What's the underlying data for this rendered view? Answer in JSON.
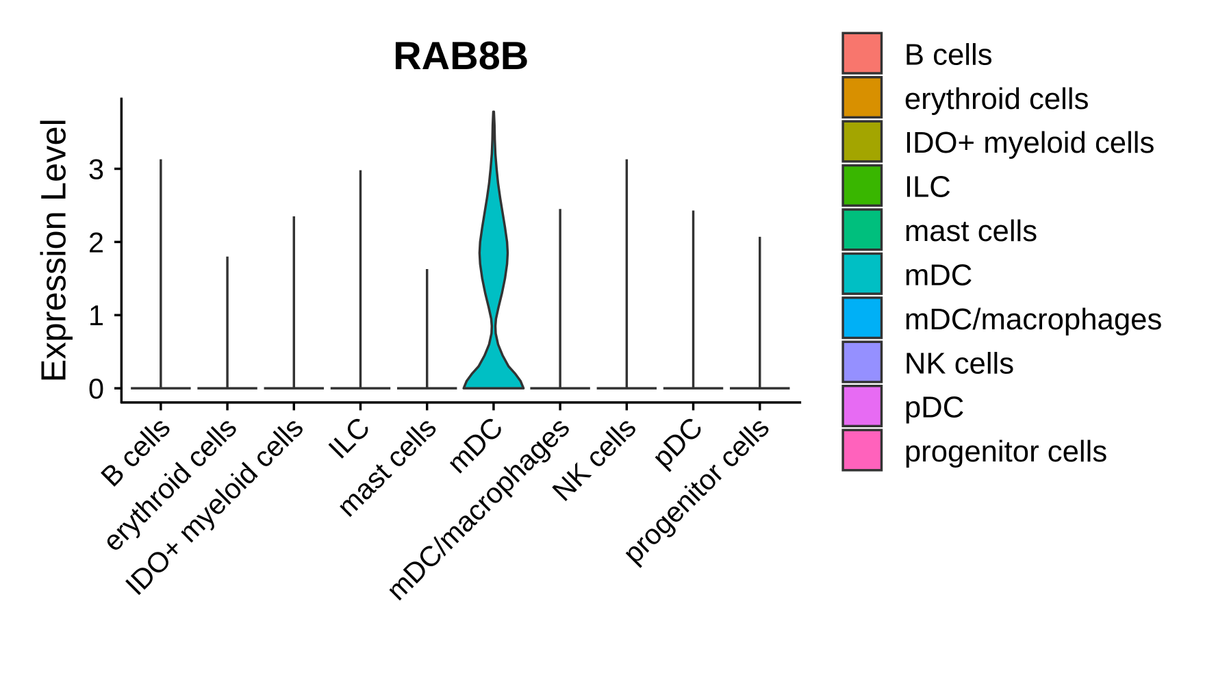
{
  "chart_data": {
    "type": "violin",
    "title": "RAB8B",
    "xlabel": "",
    "ylabel": "Expression Level",
    "ylim": [
      -0.2,
      4.0
    ],
    "yticks": [
      0,
      1,
      2,
      3
    ],
    "ytick_labels": [
      "0",
      "1",
      "2",
      "3"
    ],
    "grid": false,
    "legend_position": "right",
    "categories": [
      "B cells",
      "erythroid cells",
      "IDO+ myeloid cells",
      "ILC",
      "mast cells",
      "mDC",
      "mDC/macrophages",
      "NK cells",
      "pDC",
      "progenitor cells"
    ],
    "colors": [
      "#F8766D",
      "#D89000",
      "#A3A500",
      "#39B600",
      "#00BF7D",
      "#00BFC4",
      "#00B0F6",
      "#9590FF",
      "#E76BF3",
      "#FF62BC"
    ],
    "max_values": [
      3.13,
      1.8,
      2.35,
      2.98,
      1.63,
      3.78,
      2.45,
      3.13,
      2.43,
      2.07
    ],
    "mDC_density_profile": {
      "y": [
        0,
        0.1,
        0.2,
        0.3,
        0.45,
        0.6,
        0.75,
        0.85,
        0.95,
        1.1,
        1.3,
        1.5,
        1.7,
        1.85,
        2.0,
        2.2,
        2.4,
        2.6,
        2.8,
        3.0,
        3.2,
        3.4,
        3.6,
        3.78
      ],
      "relative_width": [
        1.0,
        0.9,
        0.72,
        0.5,
        0.3,
        0.15,
        0.07,
        0.06,
        0.08,
        0.16,
        0.28,
        0.38,
        0.45,
        0.47,
        0.45,
        0.38,
        0.3,
        0.22,
        0.15,
        0.1,
        0.06,
        0.04,
        0.03,
        0.01
      ]
    },
    "legend": [
      "B cells",
      "erythroid cells",
      "IDO+ myeloid cells",
      "ILC",
      "mast cells",
      "mDC",
      "mDC/macrophages",
      "NK cells",
      "pDC",
      "progenitor cells"
    ]
  }
}
